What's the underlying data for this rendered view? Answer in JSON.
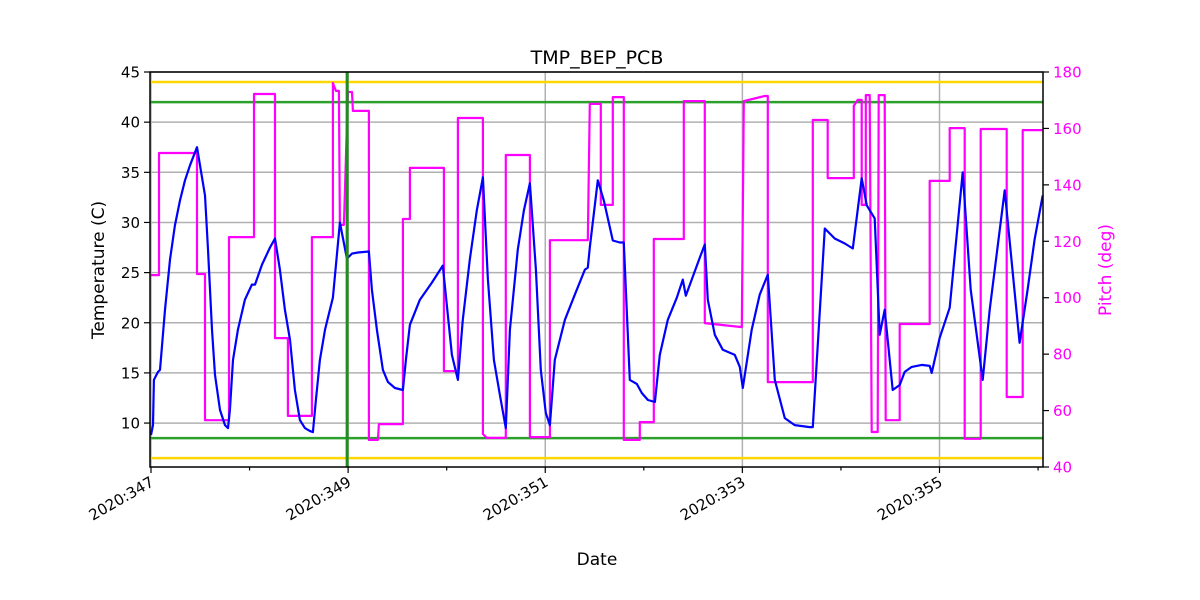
{
  "chart_data": {
    "type": "line",
    "title": "TMP_BEP_PCB",
    "xlabel": "Date",
    "ylabel": "Temperature (C)",
    "y2label": "Pitch (deg)",
    "xlim": [
      346.99,
      356.05
    ],
    "ylim": [
      5.62,
      45
    ],
    "y2lim": [
      40,
      180
    ],
    "grid": true,
    "x_ticks": [
      347,
      348,
      349,
      350,
      351,
      352,
      353,
      354,
      355,
      356
    ],
    "x_tick_labels": [
      "2020:347",
      "",
      "2020:349",
      "",
      "2020:351",
      "",
      "2020:353",
      "",
      "2020:355",
      ""
    ],
    "y_ticks": [
      10,
      15,
      20,
      25,
      30,
      35,
      40,
      45
    ],
    "y_tick_labels": [
      "10",
      "15",
      "20",
      "25",
      "30",
      "35",
      "40",
      "45"
    ],
    "y2_ticks": [
      40,
      60,
      80,
      100,
      120,
      140,
      160,
      180
    ],
    "y2_tick_labels": [
      "40",
      "60",
      "80",
      "100",
      "120",
      "140",
      "160",
      "180"
    ],
    "colors": {
      "temperature": "#0000ff",
      "pitch": "#ff00ff",
      "yellow_limit": "#ffd700",
      "green_limit": "#2ca02c",
      "grid": "#b0b0b0"
    },
    "limit_lines": [
      {
        "axis": "y",
        "value": 44.0,
        "color": "#ffd700"
      },
      {
        "axis": "y",
        "value": 6.5,
        "color": "#ffd700"
      },
      {
        "axis": "y",
        "value": 42.0,
        "color": "#2ca02c"
      },
      {
        "axis": "y",
        "value": 8.5,
        "color": "#2ca02c"
      },
      {
        "axis": "x",
        "value": 348.99,
        "color": "#228b22"
      }
    ],
    "series": [
      {
        "axis": "left",
        "color": "#0000ff",
        "points": [
          [
            347.0,
            8.81
          ],
          [
            347.02,
            9.81
          ],
          [
            347.03,
            14.3
          ],
          [
            347.071,
            15.1
          ],
          [
            347.091,
            15.3
          ],
          [
            347.142,
            21.3
          ],
          [
            347.193,
            26.3
          ],
          [
            347.243,
            29.7
          ],
          [
            347.294,
            32.2
          ],
          [
            347.345,
            34.2
          ],
          [
            347.396,
            35.7
          ],
          [
            347.467,
            37.5
          ],
          [
            347.497,
            35.7
          ],
          [
            347.548,
            32.7
          ],
          [
            347.578,
            27.3
          ],
          [
            347.619,
            19.3
          ],
          [
            347.649,
            14.8
          ],
          [
            347.7,
            11.3
          ],
          [
            347.751,
            9.8
          ],
          [
            347.781,
            9.5
          ],
          [
            347.801,
            11.3
          ],
          [
            347.832,
            16.3
          ],
          [
            347.882,
            19.3
          ],
          [
            347.953,
            22.3
          ],
          [
            348.024,
            23.8
          ],
          [
            348.055,
            23.8
          ],
          [
            348.126,
            25.8
          ],
          [
            348.207,
            27.5
          ],
          [
            348.258,
            28.4
          ],
          [
            348.308,
            25.3
          ],
          [
            348.359,
            21.3
          ],
          [
            348.41,
            18.3
          ],
          [
            348.46,
            13.3
          ],
          [
            348.511,
            10.3
          ],
          [
            348.562,
            9.5
          ],
          [
            348.613,
            9.2
          ],
          [
            348.643,
            9.1
          ],
          [
            348.673,
            12.3
          ],
          [
            348.714,
            16.3
          ],
          [
            348.765,
            19.3
          ],
          [
            348.815,
            21.3
          ],
          [
            348.846,
            22.5
          ],
          [
            348.917,
            30.0
          ],
          [
            348.988,
            26.4
          ],
          [
            349.039,
            26.9
          ],
          [
            349.099,
            27.0
          ],
          [
            349.211,
            27.1
          ],
          [
            349.241,
            23.3
          ],
          [
            349.292,
            19.3
          ],
          [
            349.353,
            15.3
          ],
          [
            349.404,
            14.1
          ],
          [
            349.475,
            13.5
          ],
          [
            349.556,
            13.3
          ],
          [
            349.586,
            16.3
          ],
          [
            349.627,
            19.8
          ],
          [
            349.728,
            22.3
          ],
          [
            349.85,
            24.0
          ],
          [
            349.961,
            25.7
          ],
          [
            350.053,
            16.8
          ],
          [
            350.114,
            14.3
          ],
          [
            350.164,
            20.3
          ],
          [
            350.235,
            26.3
          ],
          [
            350.306,
            31.2
          ],
          [
            350.367,
            34.5
          ],
          [
            350.418,
            24.3
          ],
          [
            350.479,
            16.3
          ],
          [
            350.54,
            12.8
          ],
          [
            350.6,
            9.5
          ],
          [
            350.641,
            19.3
          ],
          [
            350.722,
            27.3
          ],
          [
            350.783,
            31.2
          ],
          [
            350.844,
            33.9
          ],
          [
            350.905,
            25.3
          ],
          [
            350.955,
            15.3
          ],
          [
            351.006,
            11.0
          ],
          [
            351.047,
            9.8
          ],
          [
            351.097,
            16.3
          ],
          [
            351.199,
            20.3
          ],
          [
            351.3,
            22.8
          ],
          [
            351.402,
            25.3
          ],
          [
            351.432,
            25.5
          ],
          [
            351.452,
            27.5
          ],
          [
            351.533,
            34.2
          ],
          [
            351.594,
            32.2
          ],
          [
            351.685,
            28.2
          ],
          [
            351.756,
            28.0
          ],
          [
            351.797,
            28.0
          ],
          [
            351.858,
            14.3
          ],
          [
            351.929,
            13.9
          ],
          [
            351.98,
            13.0
          ],
          [
            352.041,
            12.3
          ],
          [
            352.112,
            12.1
          ],
          [
            352.162,
            16.8
          ],
          [
            352.243,
            20.3
          ],
          [
            352.335,
            22.5
          ],
          [
            352.396,
            24.3
          ],
          [
            352.426,
            22.7
          ],
          [
            352.568,
            26.5
          ],
          [
            352.619,
            27.8
          ],
          [
            352.649,
            22.3
          ],
          [
            352.72,
            18.8
          ],
          [
            352.801,
            17.3
          ],
          [
            352.923,
            16.8
          ],
          [
            352.974,
            15.6
          ],
          [
            353.004,
            13.5
          ],
          [
            353.095,
            19.3
          ],
          [
            353.176,
            22.8
          ],
          [
            353.258,
            24.8
          ],
          [
            353.329,
            14.3
          ],
          [
            353.43,
            10.5
          ],
          [
            353.531,
            9.8
          ],
          [
            353.683,
            9.6
          ],
          [
            353.714,
            9.6
          ],
          [
            353.836,
            29.4
          ],
          [
            353.937,
            28.4
          ],
          [
            354.039,
            27.9
          ],
          [
            354.12,
            27.4
          ],
          [
            354.211,
            34.4
          ],
          [
            354.262,
            31.7
          ],
          [
            354.312,
            30.9
          ],
          [
            354.343,
            30.4
          ],
          [
            354.393,
            18.8
          ],
          [
            354.444,
            21.3
          ],
          [
            354.525,
            13.3
          ],
          [
            354.596,
            13.8
          ],
          [
            354.647,
            15.1
          ],
          [
            354.718,
            15.6
          ],
          [
            354.819,
            15.8
          ],
          [
            354.9,
            15.7
          ],
          [
            354.921,
            15.0
          ],
          [
            355.002,
            18.5
          ],
          [
            355.103,
            21.5
          ],
          [
            355.235,
            35.0
          ],
          [
            355.316,
            23.3
          ],
          [
            355.438,
            14.3
          ],
          [
            355.509,
            21.3
          ],
          [
            355.661,
            33.2
          ],
          [
            355.813,
            18.0
          ],
          [
            355.894,
            23.3
          ],
          [
            355.965,
            28.3
          ],
          [
            356.047,
            32.7
          ]
        ]
      },
      {
        "axis": "right",
        "color": "#ff00ff",
        "points": [
          [
            347.0,
            108.0
          ],
          [
            347.081,
            108.0
          ],
          [
            347.081,
            151.3
          ],
          [
            347.467,
            151.3
          ],
          [
            347.467,
            108.4
          ],
          [
            347.548,
            108.4
          ],
          [
            347.548,
            56.6
          ],
          [
            347.791,
            56.6
          ],
          [
            347.791,
            121.5
          ],
          [
            348.045,
            121.5
          ],
          [
            348.045,
            172.2
          ],
          [
            348.258,
            172.2
          ],
          [
            348.258,
            85.7
          ],
          [
            348.389,
            85.7
          ],
          [
            348.389,
            58.1
          ],
          [
            348.633,
            58.1
          ],
          [
            348.633,
            121.5
          ],
          [
            348.846,
            121.5
          ],
          [
            348.846,
            176.1
          ],
          [
            348.876,
            173.3
          ],
          [
            348.907,
            173.3
          ],
          [
            348.917,
            125.8
          ],
          [
            348.957,
            125.8
          ],
          [
            348.998,
            172.9
          ],
          [
            349.039,
            172.9
          ],
          [
            349.049,
            166.2
          ],
          [
            349.211,
            166.2
          ],
          [
            349.211,
            49.6
          ],
          [
            349.302,
            49.6
          ],
          [
            349.312,
            55.2
          ],
          [
            349.556,
            55.2
          ],
          [
            349.556,
            127.9
          ],
          [
            349.627,
            127.9
          ],
          [
            349.627,
            146.0
          ],
          [
            349.972,
            146.0
          ],
          [
            349.972,
            74.0
          ],
          [
            350.114,
            74.0
          ],
          [
            350.114,
            163.7
          ],
          [
            350.367,
            163.7
          ],
          [
            350.367,
            51.7
          ],
          [
            350.408,
            50.3
          ],
          [
            350.6,
            50.3
          ],
          [
            350.6,
            150.6
          ],
          [
            350.844,
            150.6
          ],
          [
            350.844,
            50.6
          ],
          [
            351.047,
            50.6
          ],
          [
            351.047,
            120.4
          ],
          [
            351.432,
            120.4
          ],
          [
            351.452,
            168.7
          ],
          [
            351.564,
            168.7
          ],
          [
            351.564,
            132.9
          ],
          [
            351.685,
            132.9
          ],
          [
            351.685,
            171.1
          ],
          [
            351.797,
            171.1
          ],
          [
            351.797,
            49.6
          ],
          [
            351.959,
            49.6
          ],
          [
            351.959,
            55.9
          ],
          [
            352.101,
            55.9
          ],
          [
            352.101,
            120.8
          ],
          [
            352.406,
            120.8
          ],
          [
            352.406,
            169.7
          ],
          [
            352.619,
            169.7
          ],
          [
            352.619,
            91.0
          ],
          [
            352.994,
            89.6
          ],
          [
            353.014,
            169.7
          ],
          [
            353.227,
            171.5
          ],
          [
            353.258,
            171.5
          ],
          [
            353.258,
            70.1
          ],
          [
            353.714,
            70.1
          ],
          [
            353.714,
            163.0
          ],
          [
            353.866,
            163.0
          ],
          [
            353.866,
            142.4
          ],
          [
            354.13,
            142.4
          ],
          [
            354.13,
            168.0
          ],
          [
            354.17,
            170.1
          ],
          [
            354.211,
            170.1
          ],
          [
            354.211,
            132.9
          ],
          [
            354.252,
            132.9
          ],
          [
            354.252,
            171.8
          ],
          [
            354.292,
            171.8
          ],
          [
            354.312,
            52.4
          ],
          [
            354.373,
            52.4
          ],
          [
            354.383,
            171.8
          ],
          [
            354.444,
            171.8
          ],
          [
            354.454,
            56.6
          ],
          [
            354.596,
            56.6
          ],
          [
            354.596,
            90.7
          ],
          [
            354.9,
            90.7
          ],
          [
            354.9,
            141.4
          ],
          [
            355.103,
            141.4
          ],
          [
            355.103,
            160.1
          ],
          [
            355.256,
            160.1
          ],
          [
            355.256,
            50.0
          ],
          [
            355.418,
            50.0
          ],
          [
            355.418,
            159.8
          ],
          [
            355.682,
            159.8
          ],
          [
            355.682,
            64.8
          ],
          [
            355.844,
            64.8
          ],
          [
            355.844,
            159.4
          ],
          [
            356.047,
            159.4
          ]
        ]
      }
    ]
  }
}
